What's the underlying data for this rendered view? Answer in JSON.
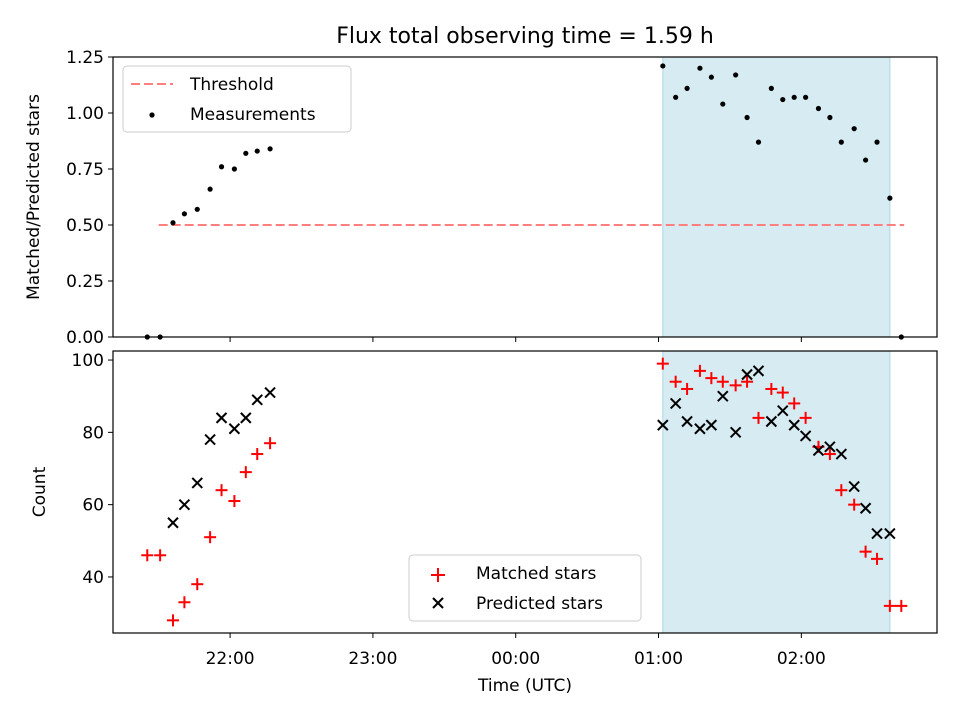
{
  "chart_data": [
    {
      "type": "scatter",
      "title": "Flux total observing time = 1.59 h",
      "xlabel": "",
      "ylabel": "Matched/Predicted stars",
      "ylim": [
        0,
        1.25
      ],
      "yticks": [
        "0.00",
        "0.25",
        "0.50",
        "0.75",
        "1.00",
        "1.25"
      ],
      "xlim_hours": [
        21.18,
        26.95
      ],
      "highlight_span_hours": [
        25.03,
        26.62
      ],
      "highlight_color": "#add8e6",
      "legend_position": "upper-left",
      "threshold": {
        "name": "Threshold",
        "y": 0.5,
        "x_from": 21.5,
        "x_to": 26.72,
        "color": "#ff7f7f",
        "style": "dashed"
      },
      "series": [
        {
          "name": "Measurements",
          "color": "#000000",
          "marker": "dot",
          "x": [
            21.42,
            21.51,
            21.6,
            21.68,
            21.77,
            21.86,
            21.94,
            22.03,
            22.11,
            22.19,
            22.28,
            25.03,
            25.12,
            25.2,
            25.29,
            25.37,
            25.45,
            25.54,
            25.62,
            25.7,
            25.79,
            25.87,
            25.95,
            26.03,
            26.12,
            26.2,
            26.28,
            26.37,
            26.45,
            26.53,
            26.62,
            26.7
          ],
          "y": [
            0.0,
            0.0,
            0.51,
            0.55,
            0.57,
            0.66,
            0.76,
            0.75,
            0.82,
            0.83,
            0.84,
            1.21,
            1.07,
            1.11,
            1.2,
            1.16,
            1.04,
            1.17,
            0.98,
            0.87,
            1.11,
            1.06,
            1.07,
            1.07,
            1.02,
            0.98,
            0.87,
            0.93,
            0.79,
            0.87,
            0.62,
            0.0
          ]
        }
      ]
    },
    {
      "type": "scatter",
      "title": "",
      "xlabel": "Time (UTC)",
      "ylabel": "Count",
      "ylim": [
        24.5,
        102.5
      ],
      "yticks": [
        "40",
        "60",
        "80",
        "100"
      ],
      "xticks": [
        {
          "hour": 22,
          "label": "22:00"
        },
        {
          "hour": 23,
          "label": "23:00"
        },
        {
          "hour": 24,
          "label": "00:00"
        },
        {
          "hour": 25,
          "label": "01:00"
        },
        {
          "hour": 26,
          "label": "02:00"
        }
      ],
      "xlim_hours": [
        21.18,
        26.95
      ],
      "highlight_span_hours": [
        25.03,
        26.62
      ],
      "highlight_color": "#add8e6",
      "legend_position": "lower-center",
      "series": [
        {
          "name": "Matched stars",
          "color": "#ff0000",
          "marker": "plus",
          "x": [
            21.42,
            21.51,
            21.6,
            21.68,
            21.77,
            21.86,
            21.94,
            22.03,
            22.11,
            22.19,
            22.28,
            25.03,
            25.12,
            25.2,
            25.29,
            25.37,
            25.45,
            25.54,
            25.62,
            25.7,
            25.79,
            25.87,
            25.95,
            26.03,
            26.12,
            26.2,
            26.28,
            26.37,
            26.45,
            26.53,
            26.62,
            26.7
          ],
          "y": [
            46,
            46,
            28,
            33,
            38,
            51,
            64,
            61,
            69,
            74,
            77,
            99,
            94,
            92,
            97,
            95,
            94,
            93,
            94,
            84,
            92,
            91,
            88,
            84,
            76,
            74,
            64,
            60,
            47,
            45,
            32,
            32
          ]
        },
        {
          "name": "Predicted stars",
          "color": "#000000",
          "marker": "x",
          "x": [
            21.6,
            21.68,
            21.77,
            21.86,
            21.94,
            22.03,
            22.11,
            22.19,
            22.28,
            25.03,
            25.12,
            25.2,
            25.29,
            25.37,
            25.45,
            25.54,
            25.62,
            25.7,
            25.79,
            25.87,
            25.95,
            26.03,
            26.12,
            26.2,
            26.28,
            26.37,
            26.45,
            26.53,
            26.62
          ],
          "y": [
            55,
            60,
            66,
            78,
            84,
            81,
            84,
            89,
            91,
            82,
            88,
            83,
            81,
            82,
            90,
            80,
            96,
            97,
            83,
            86,
            82,
            79,
            75,
            76,
            74,
            65,
            59,
            52,
            52
          ]
        }
      ]
    }
  ]
}
